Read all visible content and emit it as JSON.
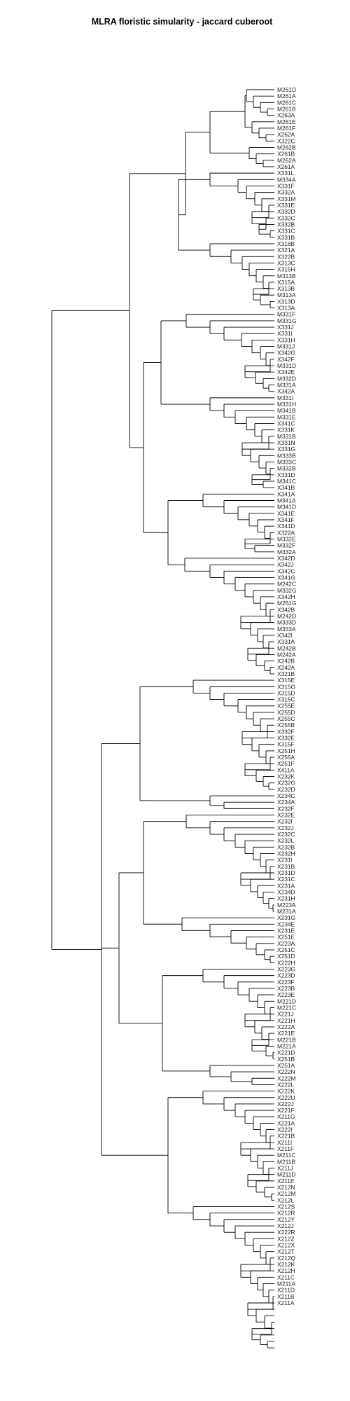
{
  "title": "MLRA floristic simularity - jaccard cuberoot",
  "leaf_labels": [
    "M261D",
    "M261A",
    "M261C",
    "M261B",
    "X263A",
    "M261E",
    "M261F",
    "X262A",
    "X322C",
    "M262B",
    "X261B",
    "M262A",
    "X261A",
    "X331L",
    "M334A",
    "X331F",
    "X332A",
    "X331M",
    "X331E",
    "X332D",
    "X332C",
    "X332B",
    "X331C",
    "X331B",
    "X316B",
    "X321A",
    "X322B",
    "X313C",
    "X315H",
    "M313B",
    "X315A",
    "X313B",
    "M313A",
    "X313D",
    "X313A",
    "M331F",
    "M331G",
    "X331J",
    "X331I",
    "X331H",
    "M331J",
    "X342G",
    "X342F",
    "M331D",
    "X342E",
    "M332D",
    "M331A",
    "X342A",
    "M331I",
    "M331H",
    "M341B",
    "M331E",
    "X341C",
    "X331K",
    "M331B",
    "X331N",
    "X331G",
    "M333B",
    "M333C",
    "M332B",
    "X331D",
    "M341C",
    "X341B",
    "X341A",
    "M341A",
    "M341D",
    "X341E",
    "X341F",
    "X341D",
    "X322A",
    "M332E",
    "M332F",
    "M332A",
    "X342D",
    "X342J",
    "X342C",
    "X341G",
    "M242C",
    "M332G",
    "X342H",
    "M261G",
    "X342B",
    "M242D",
    "M333D",
    "M333A",
    "X342I",
    "X331A",
    "M242B",
    "M242A",
    "X242B",
    "X242A",
    "X321B",
    "X315E",
    "X315G",
    "X315D",
    "X315C",
    "X255E",
    "X255D",
    "X255C",
    "X255B",
    "X332F",
    "X332E",
    "X315F",
    "X251H",
    "X255A",
    "X251F",
    "X411A",
    "X232K",
    "X232G",
    "X232D",
    "X234C",
    "X234A",
    "X232F",
    "X232E",
    "X232I",
    "X232J",
    "X232C",
    "X232L",
    "X232B",
    "X232H",
    "X231I",
    "X231B",
    "X231D",
    "X231C",
    "X231A",
    "X234D",
    "X231H",
    "M223A",
    "M231A",
    "X231G",
    "X234E",
    "X231E",
    "X251E",
    "X223A",
    "X251C",
    "X251D",
    "X222H",
    "X223G",
    "X223D",
    "X223F",
    "X223B",
    "X223E",
    "M221D",
    "M221C",
    "X221J",
    "X221H",
    "X222A",
    "X221E",
    "M221B",
    "M221A",
    "X221D",
    "X251B",
    "X251A",
    "X222N",
    "X222M",
    "X222L",
    "X222K",
    "X222U",
    "X222J",
    "X221F",
    "X211G",
    "X221A",
    "X222I",
    "X221B",
    "X211I",
    "X211F",
    "M211C",
    "M211B",
    "X211J",
    "M211D",
    "X211E",
    "X212N",
    "X212M",
    "X212L",
    "X212S",
    "X212R",
    "X212Y",
    "X212J",
    "X222R",
    "X212Z",
    "X212X",
    "X212T",
    "X212Q",
    "X212K",
    "X212H",
    "X211C",
    "M211A",
    "X211D",
    "X211B",
    "X211A"
  ],
  "tree_structure": [
    [
      [
        "((0,(1,(2,(3,4)))),((5,6),(7,8)))",
        "((9,10),(11,12))"
      ]
    ],
    "clusters reproduced as nested merges in drawing script"
  ]
}
